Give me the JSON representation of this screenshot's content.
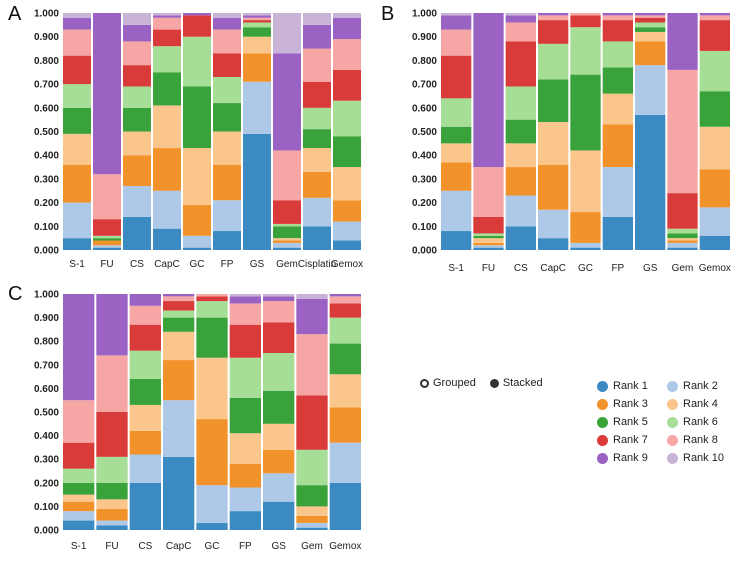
{
  "labels": {
    "A": "A",
    "B": "B",
    "C": "C"
  },
  "toggle": {
    "grouped": "Grouped",
    "stacked": "Stacked"
  },
  "legend": [
    {
      "name": "Rank 1",
      "color": "#3b8bc2"
    },
    {
      "name": "Rank 2",
      "color": "#aec8e8"
    },
    {
      "name": "Rank 3",
      "color": "#f2922b"
    },
    {
      "name": "Rank 4",
      "color": "#fbc68c"
    },
    {
      "name": "Rank 5",
      "color": "#3aa23a"
    },
    {
      "name": "Rank 6",
      "color": "#a6dd97"
    },
    {
      "name": "Rank 7",
      "color": "#d93a3a"
    },
    {
      "name": "Rank 8",
      "color": "#f7a6a6"
    },
    {
      "name": "Rank 9",
      "color": "#9a62c2"
    },
    {
      "name": "Rank 10",
      "color": "#c9b3d6"
    }
  ],
  "chart_data": [
    {
      "panel": "A",
      "type": "bar",
      "stacked": true,
      "ylim": [
        0,
        1
      ],
      "yticks": [
        "0.000",
        "0.100",
        "0.200",
        "0.300",
        "0.400",
        "0.500",
        "0.600",
        "0.700",
        "0.800",
        "0.900",
        "1.000"
      ],
      "categories": [
        "S-1",
        "FU",
        "CS",
        "CapC",
        "GC",
        "FP",
        "GS",
        "Gem",
        "Cisplatin",
        "Gemox"
      ],
      "stacks": [
        [
          0.05,
          0.2,
          0.36,
          0.49,
          0.6,
          0.7,
          0.82,
          0.93,
          0.98,
          1.0
        ],
        [
          0.01,
          0.02,
          0.04,
          0.04,
          0.05,
          0.06,
          0.13,
          0.32,
          1.0,
          1.0
        ],
        [
          0.14,
          0.27,
          0.4,
          0.5,
          0.6,
          0.69,
          0.78,
          0.88,
          0.95,
          1.0
        ],
        [
          0.09,
          0.25,
          0.43,
          0.61,
          0.75,
          0.86,
          0.93,
          0.98,
          0.99,
          1.0
        ],
        [
          0.01,
          0.06,
          0.19,
          0.43,
          0.69,
          0.9,
          0.99,
          0.99,
          1.0,
          1.0
        ],
        [
          0.08,
          0.21,
          0.36,
          0.5,
          0.62,
          0.73,
          0.83,
          0.93,
          0.98,
          1.0
        ],
        [
          0.49,
          0.71,
          0.83,
          0.9,
          0.94,
          0.96,
          0.97,
          0.98,
          0.99,
          1.0
        ],
        [
          0.01,
          0.03,
          0.04,
          0.05,
          0.1,
          0.11,
          0.21,
          0.42,
          0.83,
          1.0
        ],
        [
          0.1,
          0.22,
          0.33,
          0.43,
          0.51,
          0.6,
          0.71,
          0.85,
          0.95,
          1.0
        ],
        [
          0.04,
          0.12,
          0.21,
          0.35,
          0.48,
          0.63,
          0.76,
          0.89,
          0.98,
          1.0
        ]
      ]
    },
    {
      "panel": "B",
      "type": "bar",
      "stacked": true,
      "ylim": [
        0,
        1
      ],
      "yticks": [
        "0.000",
        "0.100",
        "0.200",
        "0.300",
        "0.400",
        "0.500",
        "0.600",
        "0.700",
        "0.800",
        "0.900",
        "1.000"
      ],
      "categories": [
        "S-1",
        "FU",
        "CS",
        "CapC",
        "GC",
        "FP",
        "GS",
        "Gem",
        "Gemox"
      ],
      "stacks": [
        [
          0.08,
          0.25,
          0.37,
          0.45,
          0.52,
          0.64,
          0.82,
          0.93,
          0.99,
          1.0
        ],
        [
          0.01,
          0.02,
          0.03,
          0.05,
          0.06,
          0.07,
          0.14,
          0.35,
          1.0,
          1.0
        ],
        [
          0.1,
          0.23,
          0.35,
          0.45,
          0.55,
          0.69,
          0.88,
          0.96,
          0.99,
          1.0
        ],
        [
          0.05,
          0.17,
          0.36,
          0.54,
          0.72,
          0.87,
          0.97,
          0.99,
          1.0,
          1.0
        ],
        [
          0.01,
          0.03,
          0.16,
          0.42,
          0.74,
          0.94,
          0.99,
          1.0,
          1.0,
          1.0
        ],
        [
          0.14,
          0.35,
          0.53,
          0.66,
          0.77,
          0.88,
          0.97,
          0.99,
          1.0,
          1.0
        ],
        [
          0.57,
          0.78,
          0.88,
          0.92,
          0.94,
          0.96,
          0.98,
          0.99,
          1.0,
          1.0
        ],
        [
          0.01,
          0.03,
          0.04,
          0.05,
          0.07,
          0.09,
          0.24,
          0.76,
          1.0,
          1.0
        ],
        [
          0.06,
          0.18,
          0.34,
          0.52,
          0.67,
          0.84,
          0.97,
          0.99,
          1.0,
          1.0
        ]
      ]
    },
    {
      "panel": "C",
      "type": "bar",
      "stacked": true,
      "ylim": [
        0,
        1
      ],
      "yticks": [
        "0.000",
        "0.100",
        "0.200",
        "0.300",
        "0.400",
        "0.500",
        "0.600",
        "0.700",
        "0.800",
        "0.900",
        "1.000"
      ],
      "categories": [
        "S-1",
        "FU",
        "CS",
        "CapC",
        "GC",
        "FP",
        "GS",
        "Gem",
        "Gemox"
      ],
      "stacks": [
        [
          0.04,
          0.08,
          0.12,
          0.15,
          0.2,
          0.26,
          0.37,
          0.55,
          1.0,
          1.0
        ],
        [
          0.02,
          0.04,
          0.09,
          0.13,
          0.2,
          0.31,
          0.5,
          0.74,
          1.0,
          1.0
        ],
        [
          0.2,
          0.32,
          0.42,
          0.53,
          0.64,
          0.76,
          0.87,
          0.95,
          1.0,
          1.0
        ],
        [
          0.31,
          0.55,
          0.72,
          0.84,
          0.9,
          0.93,
          0.97,
          0.99,
          1.0,
          1.0
        ],
        [
          0.03,
          0.19,
          0.47,
          0.73,
          0.9,
          0.97,
          0.99,
          1.0,
          1.0,
          1.0
        ],
        [
          0.08,
          0.18,
          0.28,
          0.41,
          0.56,
          0.73,
          0.87,
          0.96,
          0.99,
          1.0
        ],
        [
          0.12,
          0.24,
          0.34,
          0.45,
          0.59,
          0.75,
          0.88,
          0.97,
          0.99,
          1.0
        ],
        [
          0.01,
          0.03,
          0.06,
          0.1,
          0.19,
          0.34,
          0.57,
          0.83,
          0.98,
          1.0
        ],
        [
          0.2,
          0.37,
          0.52,
          0.66,
          0.79,
          0.9,
          0.96,
          0.99,
          1.0,
          1.0
        ]
      ]
    }
  ]
}
